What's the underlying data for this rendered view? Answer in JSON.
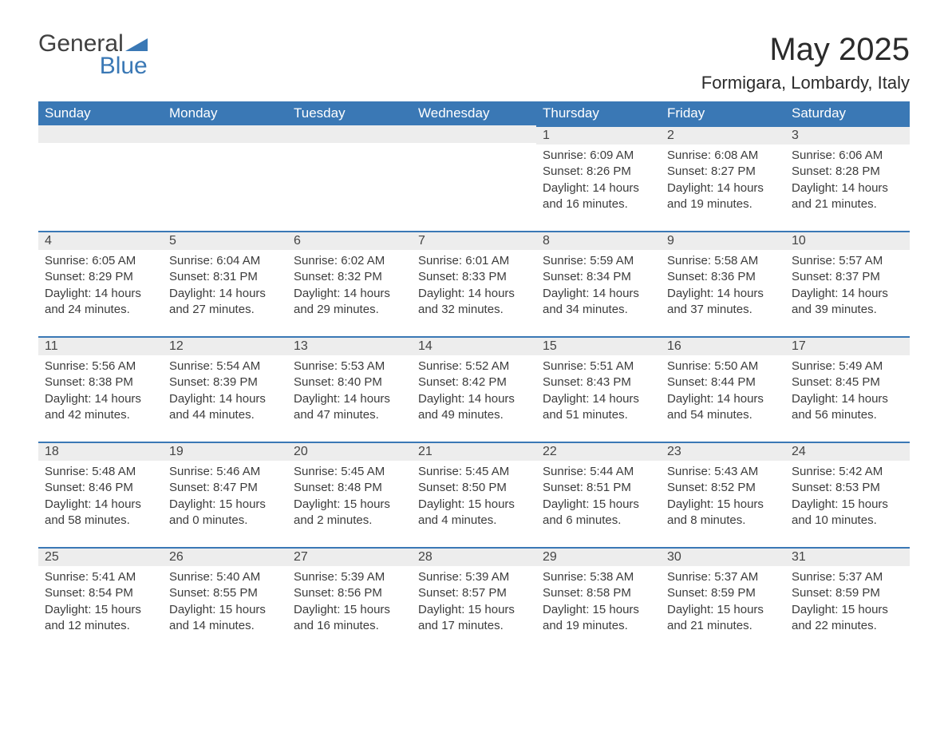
{
  "logo": {
    "text_top": "General",
    "text_bottom": "Blue"
  },
  "title": "May 2025",
  "location": "Formigara, Lombardy, Italy",
  "colors": {
    "header_bg": "#3a78b5",
    "header_text": "#ffffff",
    "daybar_bg": "#ededed",
    "daybar_border": "#3a78b5",
    "body_text": "#3c3c3c",
    "page_bg": "#ffffff"
  },
  "day_headers": [
    "Sunday",
    "Monday",
    "Tuesday",
    "Wednesday",
    "Thursday",
    "Friday",
    "Saturday"
  ],
  "weeks": [
    [
      null,
      null,
      null,
      null,
      {
        "n": "1",
        "sunrise": "6:09 AM",
        "sunset": "8:26 PM",
        "dl_h": "14",
        "dl_m": "16"
      },
      {
        "n": "2",
        "sunrise": "6:08 AM",
        "sunset": "8:27 PM",
        "dl_h": "14",
        "dl_m": "19"
      },
      {
        "n": "3",
        "sunrise": "6:06 AM",
        "sunset": "8:28 PM",
        "dl_h": "14",
        "dl_m": "21"
      }
    ],
    [
      {
        "n": "4",
        "sunrise": "6:05 AM",
        "sunset": "8:29 PM",
        "dl_h": "14",
        "dl_m": "24"
      },
      {
        "n": "5",
        "sunrise": "6:04 AM",
        "sunset": "8:31 PM",
        "dl_h": "14",
        "dl_m": "27"
      },
      {
        "n": "6",
        "sunrise": "6:02 AM",
        "sunset": "8:32 PM",
        "dl_h": "14",
        "dl_m": "29"
      },
      {
        "n": "7",
        "sunrise": "6:01 AM",
        "sunset": "8:33 PM",
        "dl_h": "14",
        "dl_m": "32"
      },
      {
        "n": "8",
        "sunrise": "5:59 AM",
        "sunset": "8:34 PM",
        "dl_h": "14",
        "dl_m": "34"
      },
      {
        "n": "9",
        "sunrise": "5:58 AM",
        "sunset": "8:36 PM",
        "dl_h": "14",
        "dl_m": "37"
      },
      {
        "n": "10",
        "sunrise": "5:57 AM",
        "sunset": "8:37 PM",
        "dl_h": "14",
        "dl_m": "39"
      }
    ],
    [
      {
        "n": "11",
        "sunrise": "5:56 AM",
        "sunset": "8:38 PM",
        "dl_h": "14",
        "dl_m": "42"
      },
      {
        "n": "12",
        "sunrise": "5:54 AM",
        "sunset": "8:39 PM",
        "dl_h": "14",
        "dl_m": "44"
      },
      {
        "n": "13",
        "sunrise": "5:53 AM",
        "sunset": "8:40 PM",
        "dl_h": "14",
        "dl_m": "47"
      },
      {
        "n": "14",
        "sunrise": "5:52 AM",
        "sunset": "8:42 PM",
        "dl_h": "14",
        "dl_m": "49"
      },
      {
        "n": "15",
        "sunrise": "5:51 AM",
        "sunset": "8:43 PM",
        "dl_h": "14",
        "dl_m": "51"
      },
      {
        "n": "16",
        "sunrise": "5:50 AM",
        "sunset": "8:44 PM",
        "dl_h": "14",
        "dl_m": "54"
      },
      {
        "n": "17",
        "sunrise": "5:49 AM",
        "sunset": "8:45 PM",
        "dl_h": "14",
        "dl_m": "56"
      }
    ],
    [
      {
        "n": "18",
        "sunrise": "5:48 AM",
        "sunset": "8:46 PM",
        "dl_h": "14",
        "dl_m": "58"
      },
      {
        "n": "19",
        "sunrise": "5:46 AM",
        "sunset": "8:47 PM",
        "dl_h": "15",
        "dl_m": "0"
      },
      {
        "n": "20",
        "sunrise": "5:45 AM",
        "sunset": "8:48 PM",
        "dl_h": "15",
        "dl_m": "2"
      },
      {
        "n": "21",
        "sunrise": "5:45 AM",
        "sunset": "8:50 PM",
        "dl_h": "15",
        "dl_m": "4"
      },
      {
        "n": "22",
        "sunrise": "5:44 AM",
        "sunset": "8:51 PM",
        "dl_h": "15",
        "dl_m": "6"
      },
      {
        "n": "23",
        "sunrise": "5:43 AM",
        "sunset": "8:52 PM",
        "dl_h": "15",
        "dl_m": "8"
      },
      {
        "n": "24",
        "sunrise": "5:42 AM",
        "sunset": "8:53 PM",
        "dl_h": "15",
        "dl_m": "10"
      }
    ],
    [
      {
        "n": "25",
        "sunrise": "5:41 AM",
        "sunset": "8:54 PM",
        "dl_h": "15",
        "dl_m": "12"
      },
      {
        "n": "26",
        "sunrise": "5:40 AM",
        "sunset": "8:55 PM",
        "dl_h": "15",
        "dl_m": "14"
      },
      {
        "n": "27",
        "sunrise": "5:39 AM",
        "sunset": "8:56 PM",
        "dl_h": "15",
        "dl_m": "16"
      },
      {
        "n": "28",
        "sunrise": "5:39 AM",
        "sunset": "8:57 PM",
        "dl_h": "15",
        "dl_m": "17"
      },
      {
        "n": "29",
        "sunrise": "5:38 AM",
        "sunset": "8:58 PM",
        "dl_h": "15",
        "dl_m": "19"
      },
      {
        "n": "30",
        "sunrise": "5:37 AM",
        "sunset": "8:59 PM",
        "dl_h": "15",
        "dl_m": "21"
      },
      {
        "n": "31",
        "sunrise": "5:37 AM",
        "sunset": "8:59 PM",
        "dl_h": "15",
        "dl_m": "22"
      }
    ]
  ],
  "labels": {
    "sunrise": "Sunrise:",
    "sunset": "Sunset:",
    "daylight_prefix": "Daylight:",
    "hours_word": "hours",
    "and_word": "and",
    "minutes_word": "minutes."
  }
}
